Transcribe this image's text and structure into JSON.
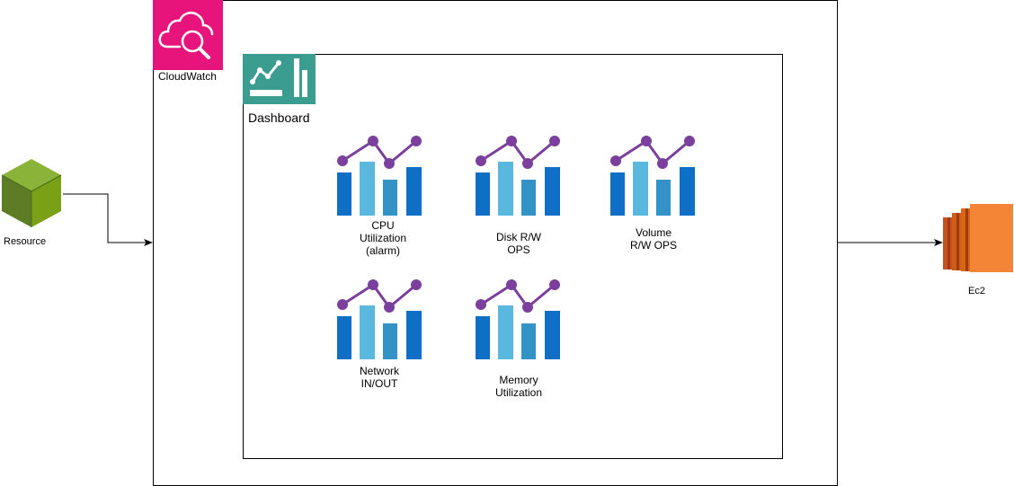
{
  "colors": {
    "cloudwatch_pink": "#E7157B",
    "dashboard_teal": "#3A9D8F",
    "resource_green": "#7AA116",
    "ec2_orange": "#ED7100",
    "bar_dark_blue": "#0F6FC6",
    "bar_light_blue": "#5AB8DE",
    "bar_mid_blue": "#3493C6",
    "trend_purple": "#7B3F9E"
  },
  "cloudwatch": {
    "label": "CloudWatch",
    "icon": "cloudwatch-magnifier-icon"
  },
  "dashboard": {
    "label": "Dashboard",
    "icon": "dashboard-chart-icon"
  },
  "metrics": [
    {
      "label": "CPU\nUtilization\n(alarm)",
      "icon": "bar-line-chart-icon"
    },
    {
      "label": "Disk R/W\nOPS",
      "icon": "bar-line-chart-icon"
    },
    {
      "label": "Volume\nR/W OPS",
      "icon": "bar-line-chart-icon"
    },
    {
      "label": "Network\nIN/OUT",
      "icon": "bar-line-chart-icon"
    },
    {
      "label": "Memory\nUtilization",
      "icon": "bar-line-chart-icon"
    }
  ],
  "resource": {
    "label": "Resource",
    "icon": "resource-cube-icon"
  },
  "ec2": {
    "label": "Ec2",
    "icon": "ec2-instance-icon"
  }
}
